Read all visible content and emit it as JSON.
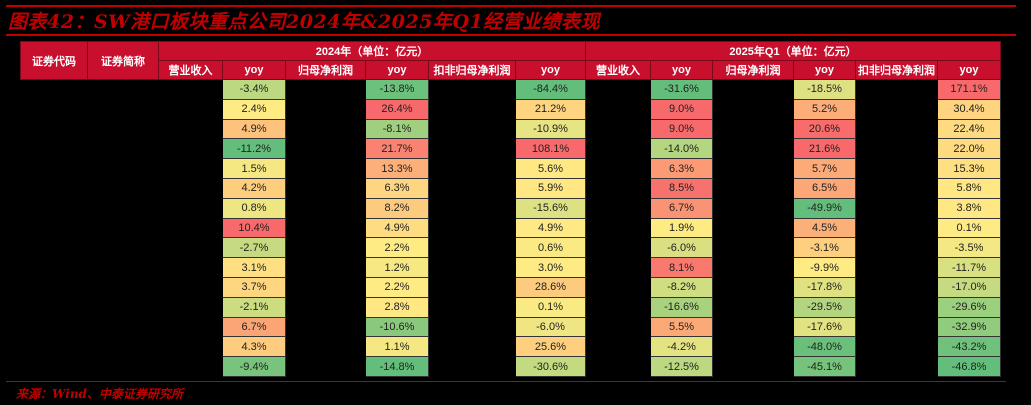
{
  "title": "图表42：SW港口板块重点公司2024年&2025年Q1经营业绩表现",
  "header": {
    "code_label": "证券代码",
    "name_label": "证券简称",
    "group_2024": "2024年（单位：亿元）",
    "group_2025": "2025年Q1（单位：亿元）",
    "sub_cols": [
      "营业收入",
      "yoy",
      "归母净利润",
      "yoy",
      "扣非归母净利润",
      "yoy",
      "营业收入",
      "yoy",
      "归母净利润",
      "yoy",
      "扣非归母净利润",
      "yoy"
    ]
  },
  "colors": {
    "header_bg": "#c8102e",
    "title_red": "#c00000",
    "scale_green": "#63be7b",
    "scale_yellow": "#ffeb84",
    "scale_red": "#f8696b"
  },
  "rows": [
    {
      "rev24_yoy": "-3.4%",
      "np24_yoy": "-13.8%",
      "dnp24_yoy": "-84.4%",
      "rev25_yoy": "-31.6%",
      "np25_yoy": "-18.5%",
      "dnp25_yoy": "171.1%"
    },
    {
      "rev24_yoy": "2.4%",
      "np24_yoy": "26.4%",
      "dnp24_yoy": "21.2%",
      "rev25_yoy": "9.0%",
      "np25_yoy": "5.2%",
      "dnp25_yoy": "30.4%"
    },
    {
      "rev24_yoy": "4.9%",
      "np24_yoy": "-8.1%",
      "dnp24_yoy": "-10.9%",
      "rev25_yoy": "9.0%",
      "np25_yoy": "20.6%",
      "dnp25_yoy": "22.4%"
    },
    {
      "rev24_yoy": "-11.2%",
      "np24_yoy": "21.7%",
      "dnp24_yoy": "108.1%",
      "rev25_yoy": "-14.0%",
      "np25_yoy": "21.6%",
      "dnp25_yoy": "22.0%"
    },
    {
      "rev24_yoy": "1.5%",
      "np24_yoy": "13.3%",
      "dnp24_yoy": "5.6%",
      "rev25_yoy": "6.3%",
      "np25_yoy": "5.7%",
      "dnp25_yoy": "15.3%"
    },
    {
      "rev24_yoy": "4.2%",
      "np24_yoy": "6.3%",
      "dnp24_yoy": "5.9%",
      "rev25_yoy": "8.5%",
      "np25_yoy": "6.5%",
      "dnp25_yoy": "5.8%"
    },
    {
      "rev24_yoy": "0.8%",
      "np24_yoy": "8.2%",
      "dnp24_yoy": "-15.6%",
      "rev25_yoy": "6.7%",
      "np25_yoy": "-49.9%",
      "dnp25_yoy": "3.8%"
    },
    {
      "rev24_yoy": "10.4%",
      "np24_yoy": "4.9%",
      "dnp24_yoy": "4.9%",
      "rev25_yoy": "1.9%",
      "np25_yoy": "4.5%",
      "dnp25_yoy": "0.1%"
    },
    {
      "rev24_yoy": "-2.7%",
      "np24_yoy": "2.2%",
      "dnp24_yoy": "0.6%",
      "rev25_yoy": "-6.0%",
      "np25_yoy": "-3.1%",
      "dnp25_yoy": "-3.5%"
    },
    {
      "rev24_yoy": "3.1%",
      "np24_yoy": "1.2%",
      "dnp24_yoy": "3.0%",
      "rev25_yoy": "8.1%",
      "np25_yoy": "-9.9%",
      "dnp25_yoy": "-11.7%"
    },
    {
      "rev24_yoy": "3.7%",
      "np24_yoy": "2.2%",
      "dnp24_yoy": "28.6%",
      "rev25_yoy": "-8.2%",
      "np25_yoy": "-17.8%",
      "dnp25_yoy": "-17.0%"
    },
    {
      "rev24_yoy": "-2.1%",
      "np24_yoy": "2.8%",
      "dnp24_yoy": "0.1%",
      "rev25_yoy": "-16.6%",
      "np25_yoy": "-29.5%",
      "dnp25_yoy": "-29.6%"
    },
    {
      "rev24_yoy": "6.7%",
      "np24_yoy": "-10.6%",
      "dnp24_yoy": "-6.0%",
      "rev25_yoy": "5.5%",
      "np25_yoy": "-17.6%",
      "dnp25_yoy": "-32.9%"
    },
    {
      "rev24_yoy": "4.3%",
      "np24_yoy": "1.1%",
      "dnp24_yoy": "25.6%",
      "rev25_yoy": "-4.2%",
      "np25_yoy": "-48.0%",
      "dnp25_yoy": "-43.2%"
    },
    {
      "rev24_yoy": "-9.4%",
      "np24_yoy": "-14.8%",
      "dnp24_yoy": "-30.6%",
      "rev25_yoy": "-12.5%",
      "np25_yoy": "-45.1%",
      "dnp25_yoy": "-46.8%"
    }
  ],
  "source": "来源：Wind、中泰证券研究所"
}
